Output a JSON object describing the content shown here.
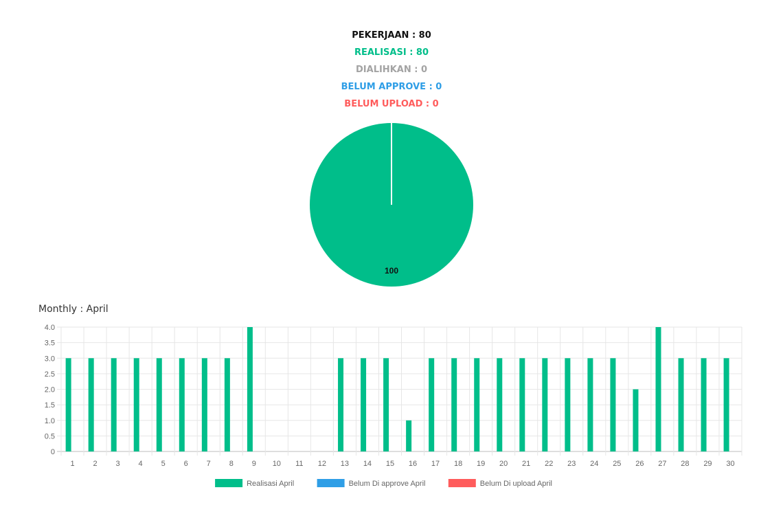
{
  "summary": {
    "pekerjaan": "PEKERJAAN : 80",
    "realisasi": "REALISASI : 80",
    "dialihkan": "DIALIHKAN : 0",
    "belum_approve": "BELUM APPROVE : 0",
    "belum_upload": "BELUM UPLOAD : 0"
  },
  "colors": {
    "pekerjaan": "#111111",
    "realisasi": "#00be8a",
    "dialihkan": "#a3a3a3",
    "belum_approve": "#2f9ee6",
    "belum_upload": "#ff5c5c",
    "grid": "#e6e6e6",
    "axis_text": "#666666"
  },
  "monthly_title": "Monthly : April",
  "chart_data": [
    {
      "type": "pie",
      "slices": [
        {
          "label": "Realisasi",
          "value": 100,
          "color": "#00be8a"
        },
        {
          "label": "Dialihkan",
          "value": 0,
          "color": "#a3a3a3"
        },
        {
          "label": "Belum Approve",
          "value": 0,
          "color": "#2f9ee6"
        },
        {
          "label": "Belum Upload",
          "value": 0,
          "color": "#ff5c5c"
        }
      ],
      "data_label": "100"
    },
    {
      "type": "bar",
      "categories": [
        "1",
        "2",
        "3",
        "4",
        "5",
        "6",
        "7",
        "8",
        "9",
        "10",
        "11",
        "12",
        "13",
        "14",
        "15",
        "16",
        "17",
        "18",
        "19",
        "20",
        "21",
        "22",
        "23",
        "24",
        "25",
        "26",
        "27",
        "28",
        "29",
        "30"
      ],
      "series": [
        {
          "name": "Realisasi April",
          "color": "#00be8a",
          "values": [
            3,
            3,
            3,
            3,
            3,
            3,
            3,
            3,
            4,
            0,
            0,
            0,
            3,
            3,
            3,
            1,
            3,
            3,
            3,
            3,
            3,
            3,
            3,
            3,
            3,
            2,
            4,
            3,
            3,
            3
          ]
        },
        {
          "name": "Belum Di approve April",
          "color": "#2f9ee6",
          "values": [
            0,
            0,
            0,
            0,
            0,
            0,
            0,
            0,
            0,
            0,
            0,
            0,
            0,
            0,
            0,
            0,
            0,
            0,
            0,
            0,
            0,
            0,
            0,
            0,
            0,
            0,
            0,
            0,
            0,
            0
          ]
        },
        {
          "name": "Belum Di upload April",
          "color": "#ff5c5c",
          "values": [
            0,
            0,
            0,
            0,
            0,
            0,
            0,
            0,
            0,
            0,
            0,
            0,
            0,
            0,
            0,
            0,
            0,
            0,
            0,
            0,
            0,
            0,
            0,
            0,
            0,
            0,
            0,
            0,
            0,
            0
          ]
        }
      ],
      "yticks": [
        "4.0",
        "3.5",
        "3.0",
        "2.5",
        "2.0",
        "1.5",
        "1.0",
        "0.5",
        "0"
      ],
      "ylim": [
        0,
        4
      ],
      "grid": true,
      "legend_position": "bottom"
    }
  ]
}
